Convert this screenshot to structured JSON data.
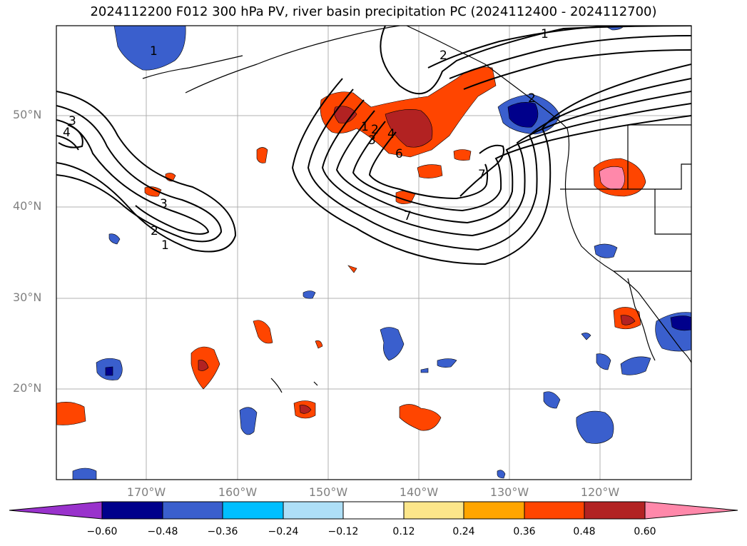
{
  "title": "2024112200 F012 300 hPa PV, river basin precipitation PC (2024112400 - 2024112700)",
  "map": {
    "lat_labels": [
      "50°N",
      "40°N",
      "30°N",
      "20°N"
    ],
    "lon_labels": [
      "170°W",
      "160°W",
      "150°W",
      "140°W",
      "130°W",
      "120°W"
    ],
    "pv_contour_labels": [
      "1",
      "2",
      "3",
      "4",
      "1",
      "2",
      "3",
      "1",
      "2",
      "3",
      "4",
      "6",
      "7",
      "7",
      "1",
      "2"
    ],
    "gridlines": true,
    "colors": {
      "coast": "#000000",
      "grid": "#b0b0b0",
      "contour": "#000000"
    }
  },
  "colorbar": {
    "ticks": [
      "−0.60",
      "−0.48",
      "−0.36",
      "−0.24",
      "−0.12",
      "0.12",
      "0.24",
      "0.36",
      "0.48",
      "0.60"
    ],
    "colors": [
      "#9932cc",
      "#00008b",
      "#3a5fcd",
      "#00bfff",
      "#aedff7",
      "#ffffff",
      "#fce68a",
      "#ffa500",
      "#ff4500",
      "#b22222",
      "#ff88aa"
    ]
  }
}
